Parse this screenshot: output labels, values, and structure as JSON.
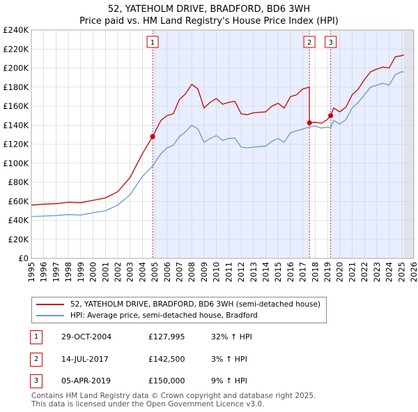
{
  "header": {
    "title": "52, YATEHOLM DRIVE, BRADFORD, BD6 3WH",
    "subtitle": "Price paid vs. HM Land Registry's House Price Index (HPI)"
  },
  "colors": {
    "property": "#cc0000",
    "hpi": "#6699cc",
    "shade": "#e8eeff",
    "grid": "#cccccc"
  },
  "chart_data": {
    "type": "line",
    "xlim": [
      1995,
      2026
    ],
    "ylim": [
      0,
      240000
    ],
    "x_ticks": [
      1995,
      1996,
      1997,
      1998,
      1999,
      2000,
      2001,
      2002,
      2003,
      2004,
      2005,
      2006,
      2007,
      2008,
      2009,
      2010,
      2011,
      2012,
      2013,
      2014,
      2015,
      2016,
      2017,
      2018,
      2019,
      2020,
      2021,
      2022,
      2023,
      2024,
      2025,
      2026
    ],
    "y_ticks": [
      {
        "value": 0,
        "label": "£0"
      },
      {
        "value": 20000,
        "label": "£20K"
      },
      {
        "value": 40000,
        "label": "£40K"
      },
      {
        "value": 60000,
        "label": "£60K"
      },
      {
        "value": 80000,
        "label": "£80K"
      },
      {
        "value": 100000,
        "label": "£100K"
      },
      {
        "value": 120000,
        "label": "£120K"
      },
      {
        "value": 140000,
        "label": "£140K"
      },
      {
        "value": 160000,
        "label": "£160K"
      },
      {
        "value": 180000,
        "label": "£180K"
      },
      {
        "value": 200000,
        "label": "£200K"
      },
      {
        "value": 220000,
        "label": "£220K"
      },
      {
        "value": 240000,
        "label": "£240K"
      }
    ],
    "series": [
      {
        "name": "52, YATEHOLM DRIVE, BRADFORD, BD6 3WH (semi-detached house)",
        "color": "#cc0000",
        "points": [
          [
            1995.0,
            56000
          ],
          [
            1996.0,
            57000
          ],
          [
            1997.0,
            57500
          ],
          [
            1998.0,
            59000
          ],
          [
            1999.0,
            58500
          ],
          [
            2000.0,
            61000
          ],
          [
            2001.0,
            63500
          ],
          [
            2002.0,
            70000
          ],
          [
            2003.0,
            85000
          ],
          [
            2004.0,
            110000
          ],
          [
            2004.83,
            127995
          ],
          [
            2005.5,
            145000
          ],
          [
            2006.0,
            150000
          ],
          [
            2006.5,
            152000
          ],
          [
            2007.0,
            167000
          ],
          [
            2007.5,
            173000
          ],
          [
            2008.0,
            183000
          ],
          [
            2008.5,
            178000
          ],
          [
            2009.0,
            158000
          ],
          [
            2009.5,
            164000
          ],
          [
            2010.0,
            168000
          ],
          [
            2010.5,
            162000
          ],
          [
            2011.0,
            164000
          ],
          [
            2011.5,
            165000
          ],
          [
            2012.0,
            152000
          ],
          [
            2012.5,
            151000
          ],
          [
            2013.0,
            153000
          ],
          [
            2014.0,
            154000
          ],
          [
            2014.5,
            160000
          ],
          [
            2015.0,
            163000
          ],
          [
            2015.5,
            158000
          ],
          [
            2016.0,
            170000
          ],
          [
            2016.5,
            172000
          ],
          [
            2017.0,
            178000
          ],
          [
            2017.53,
            180000
          ],
          [
            2017.54,
            142500
          ],
          [
            2018.0,
            143000
          ],
          [
            2018.5,
            142000
          ],
          [
            2019.0,
            146000
          ],
          [
            2019.26,
            150000
          ],
          [
            2019.5,
            158000
          ],
          [
            2020.0,
            154000
          ],
          [
            2020.5,
            159000
          ],
          [
            2021.0,
            172000
          ],
          [
            2021.5,
            178000
          ],
          [
            2022.0,
            188000
          ],
          [
            2022.5,
            196000
          ],
          [
            2023.0,
            199000
          ],
          [
            2023.5,
            201000
          ],
          [
            2024.0,
            200000
          ],
          [
            2024.5,
            212000
          ],
          [
            2025.0,
            213000
          ],
          [
            2025.2,
            214000
          ]
        ]
      },
      {
        "name": "HPI: Average price, semi-detached house, Bradford",
        "color": "#6699cc",
        "points": [
          [
            1995.0,
            44000
          ],
          [
            1996.0,
            44500
          ],
          [
            1997.0,
            45000
          ],
          [
            1998.0,
            46000
          ],
          [
            1999.0,
            45500
          ],
          [
            2000.0,
            48000
          ],
          [
            2001.0,
            50000
          ],
          [
            2002.0,
            56000
          ],
          [
            2003.0,
            67000
          ],
          [
            2004.0,
            86000
          ],
          [
            2004.83,
            97000
          ],
          [
            2005.5,
            110000
          ],
          [
            2006.0,
            116000
          ],
          [
            2006.5,
            119000
          ],
          [
            2007.0,
            128000
          ],
          [
            2007.5,
            133000
          ],
          [
            2008.0,
            140000
          ],
          [
            2008.5,
            136000
          ],
          [
            2009.0,
            122000
          ],
          [
            2009.5,
            126000
          ],
          [
            2010.0,
            129000
          ],
          [
            2010.5,
            124000
          ],
          [
            2011.0,
            126000
          ],
          [
            2011.5,
            126500
          ],
          [
            2012.0,
            117000
          ],
          [
            2012.5,
            116000
          ],
          [
            2013.0,
            117000
          ],
          [
            2014.0,
            118000
          ],
          [
            2014.5,
            123000
          ],
          [
            2015.0,
            126000
          ],
          [
            2015.5,
            122000
          ],
          [
            2016.0,
            132000
          ],
          [
            2016.5,
            134000
          ],
          [
            2017.0,
            136000
          ],
          [
            2017.53,
            138000
          ],
          [
            2018.0,
            139000
          ],
          [
            2018.5,
            137000
          ],
          [
            2019.0,
            138000
          ],
          [
            2019.26,
            137000
          ],
          [
            2019.5,
            145000
          ],
          [
            2020.0,
            141000
          ],
          [
            2020.5,
            146000
          ],
          [
            2021.0,
            158000
          ],
          [
            2021.5,
            164000
          ],
          [
            2022.0,
            172000
          ],
          [
            2022.5,
            180000
          ],
          [
            2023.0,
            182000
          ],
          [
            2023.5,
            184000
          ],
          [
            2024.0,
            182000
          ],
          [
            2024.5,
            193000
          ],
          [
            2025.0,
            196000
          ],
          [
            2025.2,
            196000
          ]
        ]
      }
    ],
    "sales": [
      {
        "label": "1",
        "x": 2004.83,
        "value": 127995
      },
      {
        "label": "2",
        "x": 2017.54,
        "value": 142500
      },
      {
        "label": "3",
        "x": 2019.26,
        "value": 150000
      }
    ],
    "shaded_ranges": [
      [
        2004.83,
        2017.54
      ],
      [
        2019.26,
        2026
      ],
      [
        2025.2,
        2026
      ]
    ],
    "grid": true
  },
  "legend": {
    "items": [
      {
        "label": "52, YATEHOLM DRIVE, BRADFORD, BD6 3WH (semi-detached house)"
      },
      {
        "label": "HPI: Average price, semi-detached house, Bradford"
      }
    ]
  },
  "sales_table": [
    {
      "num": "1",
      "date": "29-OCT-2004",
      "price": "£127,995",
      "hpi": "32% ↑ HPI"
    },
    {
      "num": "2",
      "date": "14-JUL-2017",
      "price": "£142,500",
      "hpi": "3% ↑ HPI"
    },
    {
      "num": "3",
      "date": "05-APR-2019",
      "price": "£150,000",
      "hpi": "9% ↑ HPI"
    }
  ],
  "footer": {
    "line1": "Contains HM Land Registry data © Crown copyright and database right 2025.",
    "line2": "This data is licensed under the Open Government Licence v3.0."
  }
}
